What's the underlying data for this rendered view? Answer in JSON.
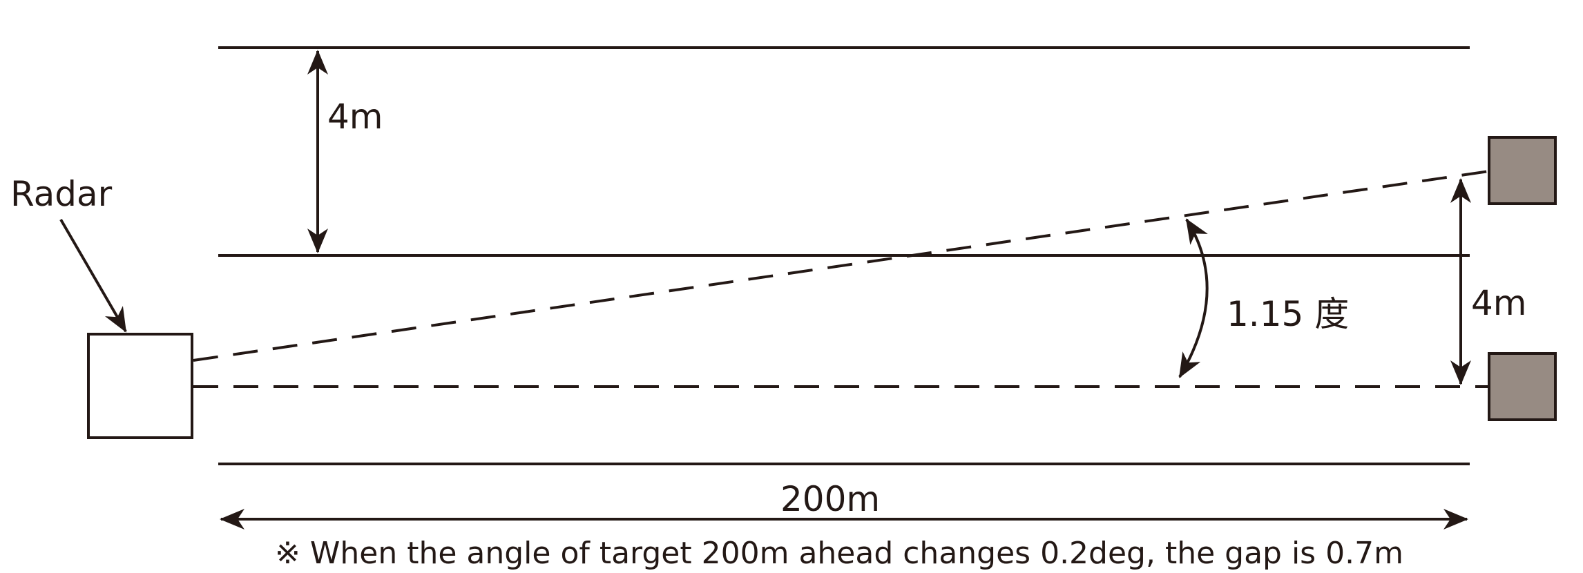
{
  "labels": {
    "radar": "Radar",
    "lane_width_top": "4m",
    "lane_width_right": "4m",
    "angle": "1.15 度",
    "distance": "200m",
    "note": "※ When the angle of target 200m ahead changes 0.2deg, the gap is 0.7m"
  },
  "colors": {
    "ink": "#231815",
    "target_fill": "#978b83",
    "radar_fill": "#ffffff",
    "background": "#ffffff"
  }
}
